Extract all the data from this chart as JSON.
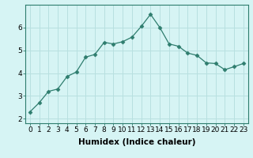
{
  "x": [
    0,
    1,
    2,
    3,
    4,
    5,
    6,
    7,
    8,
    9,
    10,
    11,
    12,
    13,
    14,
    15,
    16,
    17,
    18,
    19,
    20,
    21,
    22,
    23
  ],
  "y": [
    2.3,
    2.7,
    3.2,
    3.3,
    3.85,
    4.05,
    4.7,
    4.82,
    5.35,
    5.28,
    5.38,
    5.58,
    6.05,
    6.58,
    6.0,
    5.28,
    5.18,
    4.88,
    4.78,
    4.45,
    4.42,
    4.15,
    4.28,
    4.42
  ],
  "line_color": "#2e7d6e",
  "marker": "D",
  "marker_size": 2.5,
  "bg_color": "#d6f4f4",
  "grid_color": "#b8e0e0",
  "xlabel": "Humidex (Indice chaleur)",
  "ylim": [
    1.8,
    7.0
  ],
  "xlim": [
    -0.5,
    23.5
  ],
  "yticks": [
    2,
    3,
    4,
    5,
    6
  ],
  "xticks": [
    0,
    1,
    2,
    3,
    4,
    5,
    6,
    7,
    8,
    9,
    10,
    11,
    12,
    13,
    14,
    15,
    16,
    17,
    18,
    19,
    20,
    21,
    22,
    23
  ],
  "xlabel_fontsize": 7.5,
  "tick_fontsize": 6.5
}
